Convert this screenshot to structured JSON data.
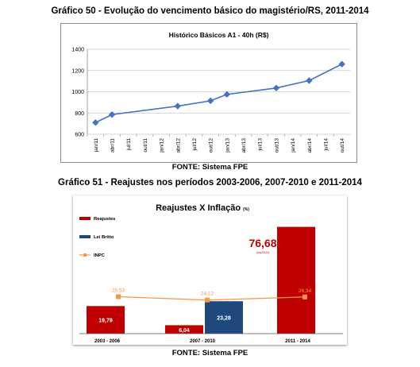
{
  "figure1": {
    "caption": "Gráfico 50 - Evolução do vencimento básico do magistério/RS, 2011-2014",
    "source": "FONTE: Sistema FPE"
  },
  "figure2": {
    "caption": "Gráfico 51 - Reajustes nos períodos 2003-2006, 2007-2010 e 2011-2014",
    "source": "FONTE: Sistema FPE"
  },
  "chart_data": [
    {
      "type": "line",
      "title": "Histórico Básicos A1 - 40h (R$)",
      "xlabel": "",
      "ylabel": "",
      "ylim": [
        600,
        1400
      ],
      "yticks": [
        600,
        800,
        1000,
        1200,
        1400
      ],
      "grid": true,
      "legend": "none",
      "color": "#4472C4",
      "x": [
        "jan/11",
        "abr/11",
        "jul/11",
        "out/11",
        "jan/12",
        "abr/12",
        "jul/12",
        "out/12",
        "jan/13",
        "abr/13",
        "jul/13",
        "out/13",
        "jan/14",
        "abr/14",
        "jul/14",
        "out/14"
      ],
      "points": [
        {
          "x": "jan/11",
          "y": 710
        },
        {
          "x": "abr/11",
          "y": 785
        },
        {
          "x": "abr/12",
          "y": 865
        },
        {
          "x": "out/12",
          "y": 915
        },
        {
          "x": "jan/13",
          "y": 975
        },
        {
          "x": "out/13",
          "y": 1035
        },
        {
          "x": "abr/14",
          "y": 1105
        },
        {
          "x": "out/14",
          "y": 1260
        }
      ]
    },
    {
      "type": "bar",
      "title": "Reajustes X Inflação",
      "title_unit": "(%)",
      "categories": [
        "2003 - 2006",
        "2007 - 2010",
        "2011 - 2014"
      ],
      "ylim": [
        0,
        85
      ],
      "legend": "left",
      "series": [
        {
          "name": "Reajustes",
          "type": "bar",
          "color": "#C00000",
          "values": [
            19.79,
            6.04,
            76.68
          ],
          "labels": [
            "19,79",
            "6,04",
            "76,68"
          ]
        },
        {
          "name": "Lei Britto",
          "type": "bar",
          "color": "#1F497D",
          "values": [
            null,
            23.28,
            null
          ],
          "labels": [
            "",
            "23,28",
            ""
          ]
        },
        {
          "name": "INPC",
          "type": "line",
          "color": "#F79646",
          "values": [
            26.53,
            24.12,
            26.34
          ],
          "labels": [
            "26,53",
            "24,12",
            "26,34"
          ]
        }
      ],
      "annotations": [
        {
          "text": "(nov/2014)"
        }
      ]
    }
  ]
}
